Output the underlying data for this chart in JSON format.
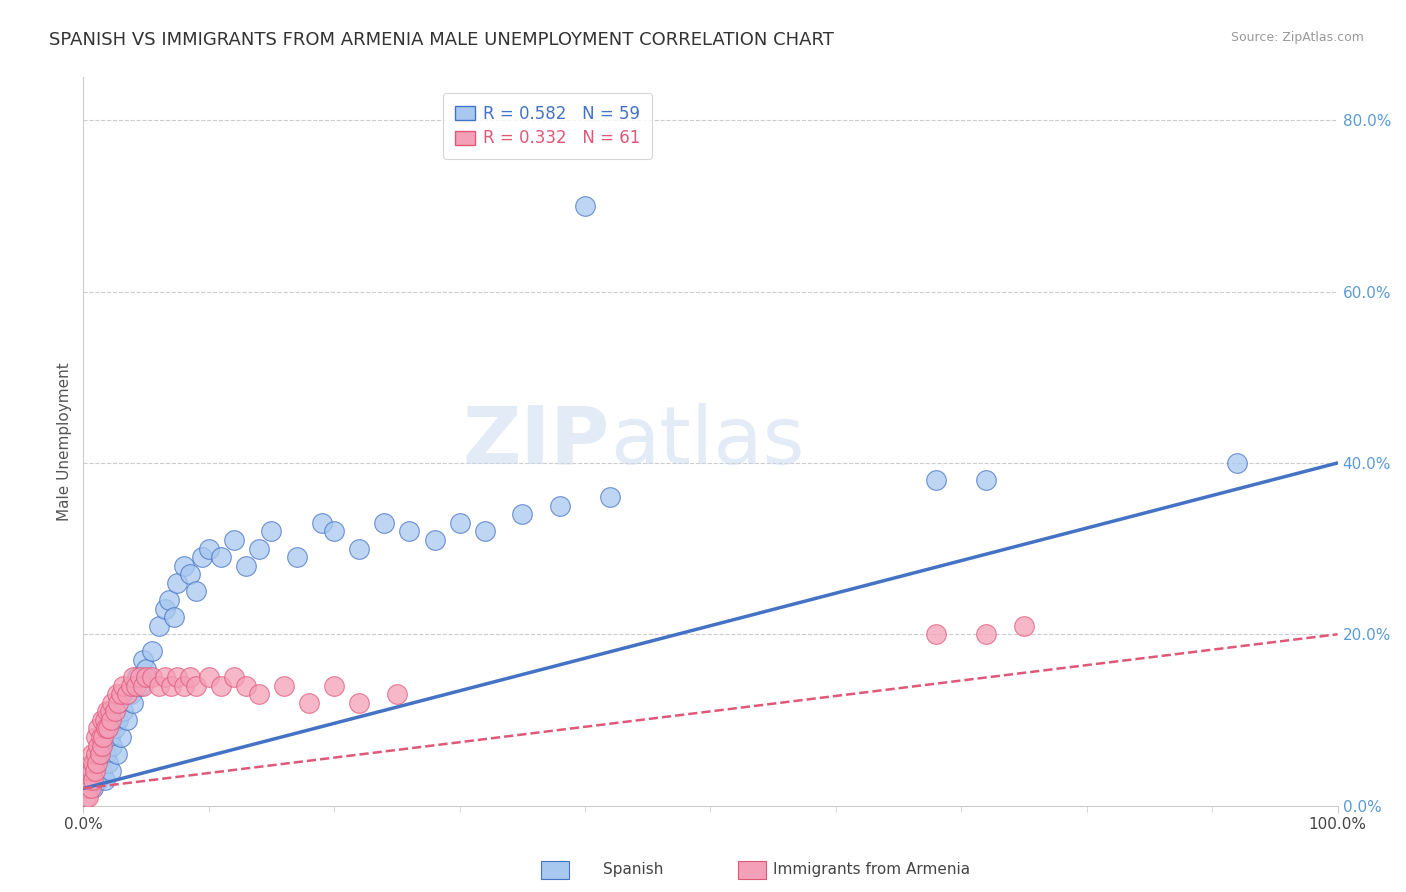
{
  "title": "SPANISH VS IMMIGRANTS FROM ARMENIA MALE UNEMPLOYMENT CORRELATION CHART",
  "source_text": "Source: ZipAtlas.com",
  "ylabel": "Male Unemployment",
  "xlim": [
    0.0,
    1.0
  ],
  "ylim": [
    0.0,
    0.85
  ],
  "yticks": [
    0.0,
    0.2,
    0.4,
    0.6,
    0.8
  ],
  "ytick_labels": [
    "0.0%",
    "20.0%",
    "40.0%",
    "60.0%",
    "80.0%"
  ],
  "xtick_labels": [
    "0.0%",
    "100.0%"
  ],
  "legend_R1": "R = 0.582",
  "legend_N1": "N = 59",
  "legend_R2": "R = 0.332",
  "legend_N2": "N = 61",
  "color_spanish": "#a8c8f0",
  "color_armenia": "#f4a0b8",
  "color_line_spanish": "#4472c4",
  "color_line_armenia": "#e05878",
  "background_color": "#ffffff",
  "watermark_text": "ZIPatlas",
  "title_fontsize": 13,
  "axis_label_fontsize": 11,
  "tick_fontsize": 11,
  "spanish_x": [
    0.005,
    0.007,
    0.008,
    0.01,
    0.01,
    0.012,
    0.013,
    0.015,
    0.016,
    0.017,
    0.018,
    0.02,
    0.021,
    0.022,
    0.023,
    0.025,
    0.027,
    0.028,
    0.03,
    0.032,
    0.035,
    0.038,
    0.04,
    0.043,
    0.045,
    0.048,
    0.05,
    0.055,
    0.06,
    0.065,
    0.068,
    0.072,
    0.075,
    0.08,
    0.085,
    0.09,
    0.095,
    0.1,
    0.11,
    0.12,
    0.13,
    0.14,
    0.15,
    0.17,
    0.19,
    0.2,
    0.22,
    0.24,
    0.26,
    0.28,
    0.3,
    0.32,
    0.35,
    0.38,
    0.4,
    0.42,
    0.68,
    0.72,
    0.92
  ],
  "spanish_y": [
    0.02,
    0.03,
    0.02,
    0.04,
    0.05,
    0.03,
    0.06,
    0.04,
    0.07,
    0.03,
    0.06,
    0.05,
    0.08,
    0.04,
    0.07,
    0.09,
    0.06,
    0.1,
    0.08,
    0.11,
    0.1,
    0.13,
    0.12,
    0.15,
    0.14,
    0.17,
    0.16,
    0.18,
    0.21,
    0.23,
    0.24,
    0.22,
    0.26,
    0.28,
    0.27,
    0.25,
    0.29,
    0.3,
    0.29,
    0.31,
    0.28,
    0.3,
    0.32,
    0.29,
    0.33,
    0.32,
    0.3,
    0.33,
    0.32,
    0.31,
    0.33,
    0.32,
    0.34,
    0.35,
    0.7,
    0.36,
    0.38,
    0.38,
    0.4
  ],
  "armenia_x": [
    0.002,
    0.003,
    0.004,
    0.005,
    0.005,
    0.006,
    0.007,
    0.007,
    0.008,
    0.008,
    0.009,
    0.01,
    0.01,
    0.011,
    0.012,
    0.012,
    0.013,
    0.014,
    0.015,
    0.015,
    0.016,
    0.017,
    0.018,
    0.019,
    0.02,
    0.021,
    0.022,
    0.023,
    0.025,
    0.027,
    0.028,
    0.03,
    0.032,
    0.035,
    0.038,
    0.04,
    0.042,
    0.045,
    0.048,
    0.05,
    0.055,
    0.06,
    0.065,
    0.07,
    0.075,
    0.08,
    0.085,
    0.09,
    0.1,
    0.11,
    0.12,
    0.13,
    0.14,
    0.16,
    0.18,
    0.2,
    0.22,
    0.25,
    0.68,
    0.72,
    0.75
  ],
  "armenia_y": [
    0.01,
    0.02,
    0.01,
    0.03,
    0.04,
    0.02,
    0.04,
    0.06,
    0.03,
    0.05,
    0.04,
    0.06,
    0.08,
    0.05,
    0.07,
    0.09,
    0.06,
    0.08,
    0.07,
    0.1,
    0.08,
    0.1,
    0.09,
    0.11,
    0.09,
    0.11,
    0.1,
    0.12,
    0.11,
    0.13,
    0.12,
    0.13,
    0.14,
    0.13,
    0.14,
    0.15,
    0.14,
    0.15,
    0.14,
    0.15,
    0.15,
    0.14,
    0.15,
    0.14,
    0.15,
    0.14,
    0.15,
    0.14,
    0.15,
    0.14,
    0.15,
    0.14,
    0.13,
    0.14,
    0.12,
    0.14,
    0.12,
    0.13,
    0.2,
    0.2,
    0.21
  ]
}
